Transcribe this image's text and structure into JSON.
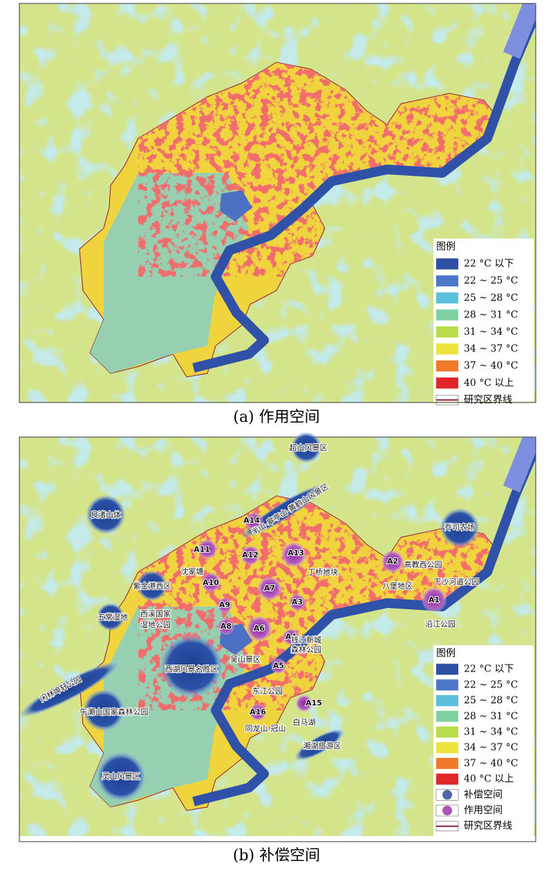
{
  "panels": [
    {
      "caption": "(a) 作用空间",
      "legend": {
        "title": "图例",
        "items": [
          {
            "label": "22 °C 以下",
            "color": "#2e4fa3"
          },
          {
            "label": "22 ~ 25 °C",
            "color": "#4d78c9"
          },
          {
            "label": "25 ~ 28 °C",
            "color": "#5cc0dc"
          },
          {
            "label": "28 ~ 31 °C",
            "color": "#7fd1a0"
          },
          {
            "label": "31 ~ 34 °C",
            "color": "#b8dc4a"
          },
          {
            "label": "34 ~ 37 °C",
            "color": "#ece43c"
          },
          {
            "label": "37 ~ 40 °C",
            "color": "#f07a2a"
          },
          {
            "label": "40 °C 以上",
            "color": "#e0262a"
          },
          {
            "label": "研究区界线",
            "color": "#8a1a3a",
            "kind": "line"
          }
        ]
      }
    },
    {
      "caption": "(b) 补偿空间",
      "legend": {
        "title": "图例",
        "items": [
          {
            "label": "22 °C 以下",
            "color": "#2e4fa3"
          },
          {
            "label": "22 ~ 25 °C",
            "color": "#4d78c9"
          },
          {
            "label": "25 ~ 28 °C",
            "color": "#5cc0dc"
          },
          {
            "label": "28 ~ 31 °C",
            "color": "#7fd1a0"
          },
          {
            "label": "31 ~ 34 °C",
            "color": "#b8dc4a"
          },
          {
            "label": "34 ~ 37 °C",
            "color": "#ece43c"
          },
          {
            "label": "37 ~ 40 °C",
            "color": "#f07a2a"
          },
          {
            "label": "40 °C 以上",
            "color": "#e0262a"
          },
          {
            "label": "补偿空间",
            "color": "#2a4c9a",
            "kind": "blue-dot"
          },
          {
            "label": "作用空间",
            "color": "#9a3aa8",
            "kind": "purple-dot"
          },
          {
            "label": "研究区界线",
            "color": "#8a1a3a",
            "kind": "line"
          }
        ]
      },
      "places": [
        "超山风景区",
        "半山-皋亭山-黄鹤山风景区",
        "良渚山体",
        "乔司农场",
        "A14",
        "A11",
        "A12",
        "A13",
        "丁桥地块",
        "A2",
        "高教西公园",
        "沈家塘",
        "A10",
        "紫金港西区",
        "A7",
        "八堡地区",
        "下沙河道公园",
        "A1",
        "A3",
        "A9",
        "五常湿地",
        "西溪国家",
        "湿地公园",
        "A8",
        "A6",
        "A4",
        "钱江新城",
        "森林公园",
        "沿江公园",
        "吴山景区",
        "A5",
        "西湖风景名胜区",
        "闲林埠轩公园",
        "东江公园",
        "A15",
        "午潮山国家森林公园",
        "A16",
        "白马湖",
        "同龙山-冠山",
        "湘湖旅游区",
        "灵山风景区"
      ]
    }
  ]
}
